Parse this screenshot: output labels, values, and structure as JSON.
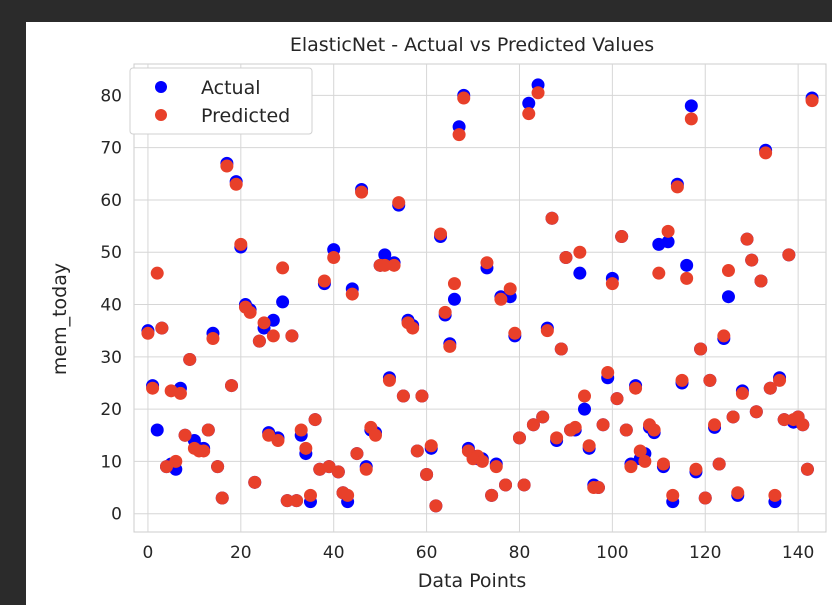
{
  "chart_data": {
    "type": "scatter",
    "title": "ElasticNet - Actual vs Predicted Values",
    "xlabel": "Data Points",
    "ylabel": "mem_today",
    "xlim": [
      -3,
      146
    ],
    "ylim": [
      -3.5,
      86
    ],
    "xticks": [
      "0",
      "20",
      "40",
      "60",
      "80",
      "100",
      "120",
      "140"
    ],
    "yticks": [
      "0",
      "10",
      "20",
      "30",
      "40",
      "50",
      "60",
      "70",
      "80"
    ],
    "grid": true,
    "legend_position": "top-left",
    "series": [
      {
        "name": "Actual",
        "color": "#0000ff",
        "values": [
          35,
          24.5,
          16,
          35.5,
          9,
          9.5,
          8.5,
          24,
          15,
          29.5,
          14,
          12.5,
          12.5,
          16,
          34.5,
          9,
          3,
          67,
          24.5,
          63.5,
          51,
          40,
          39,
          6,
          33,
          35.5,
          15.5,
          37,
          14.5,
          40.5,
          2.5,
          34,
          2.5,
          15,
          11.5,
          2.3,
          18,
          8.5,
          44,
          9,
          50.5,
          8,
          4,
          2.3,
          43,
          11.5,
          62,
          9,
          16,
          15.5,
          47.5,
          49.5,
          26,
          48,
          59,
          22.5,
          37,
          36,
          12,
          22.5,
          7.5,
          12.5,
          1.5,
          53,
          38,
          32.5,
          41,
          74,
          80,
          12.5,
          11,
          10.5,
          10.5,
          47,
          3.5,
          9.5,
          41.5,
          5.5,
          41.5,
          34,
          14.5,
          5.5,
          78.5,
          17,
          82,
          18.5,
          35.5,
          56.5,
          14,
          31.5,
          49,
          16,
          16,
          46,
          20,
          12.5,
          5.5,
          5,
          17,
          26,
          45,
          22,
          53,
          16,
          9.5,
          24.5,
          10.5,
          11.5,
          16.5,
          15.5,
          51.5,
          9,
          52,
          2.3,
          63,
          25,
          47.5,
          78,
          8,
          31.5,
          3,
          25.5,
          16.5,
          9.5,
          33.5,
          41.5,
          18.5,
          3.5,
          23.5,
          52.5,
          48.5,
          19.5,
          44.5,
          69.5,
          24,
          2.3,
          26,
          18,
          49.5,
          17.5,
          18.5,
          17,
          8.5,
          79.5
        ],
        "marker": "circle"
      },
      {
        "name": "Predicted",
        "color": "#e8402a",
        "values": [
          34.5,
          24,
          46,
          35.5,
          9,
          23.5,
          10,
          23,
          15,
          29.5,
          12.5,
          12,
          12,
          16,
          33.5,
          9,
          3,
          66.5,
          24.5,
          63,
          51.5,
          39.5,
          38.5,
          6,
          33,
          36.5,
          15,
          34,
          14,
          47,
          2.5,
          34,
          2.5,
          16,
          12.5,
          3.5,
          18,
          8.5,
          44.5,
          9,
          49,
          8,
          4,
          3.5,
          42,
          11.5,
          61.5,
          8.5,
          16.5,
          15,
          47.5,
          47.5,
          25.5,
          47.5,
          59.5,
          22.5,
          36.5,
          35.5,
          12,
          22.5,
          7.5,
          13,
          1.5,
          53.5,
          38.5,
          32,
          44,
          72.5,
          79.5,
          12,
          10.5,
          11,
          10,
          48,
          3.5,
          9,
          41,
          5.5,
          43,
          34.5,
          14.5,
          5.5,
          76.5,
          17,
          80.5,
          18.5,
          35,
          56.5,
          14.5,
          31.5,
          49,
          16,
          16.5,
          50,
          22.5,
          13,
          5,
          5,
          17,
          27,
          44,
          22,
          53,
          16,
          9,
          24,
          12,
          10,
          17,
          16,
          46,
          9.5,
          54,
          3.5,
          62.5,
          25.5,
          45,
          75.5,
          8.5,
          31.5,
          3,
          25.5,
          17,
          9.5,
          34,
          46.5,
          18.5,
          4,
          23,
          52.5,
          48.5,
          19.5,
          44.5,
          69,
          24,
          3.5,
          25.5,
          18,
          49.5,
          18,
          18.5,
          17,
          8.5,
          79
        ]
      }
    ]
  }
}
